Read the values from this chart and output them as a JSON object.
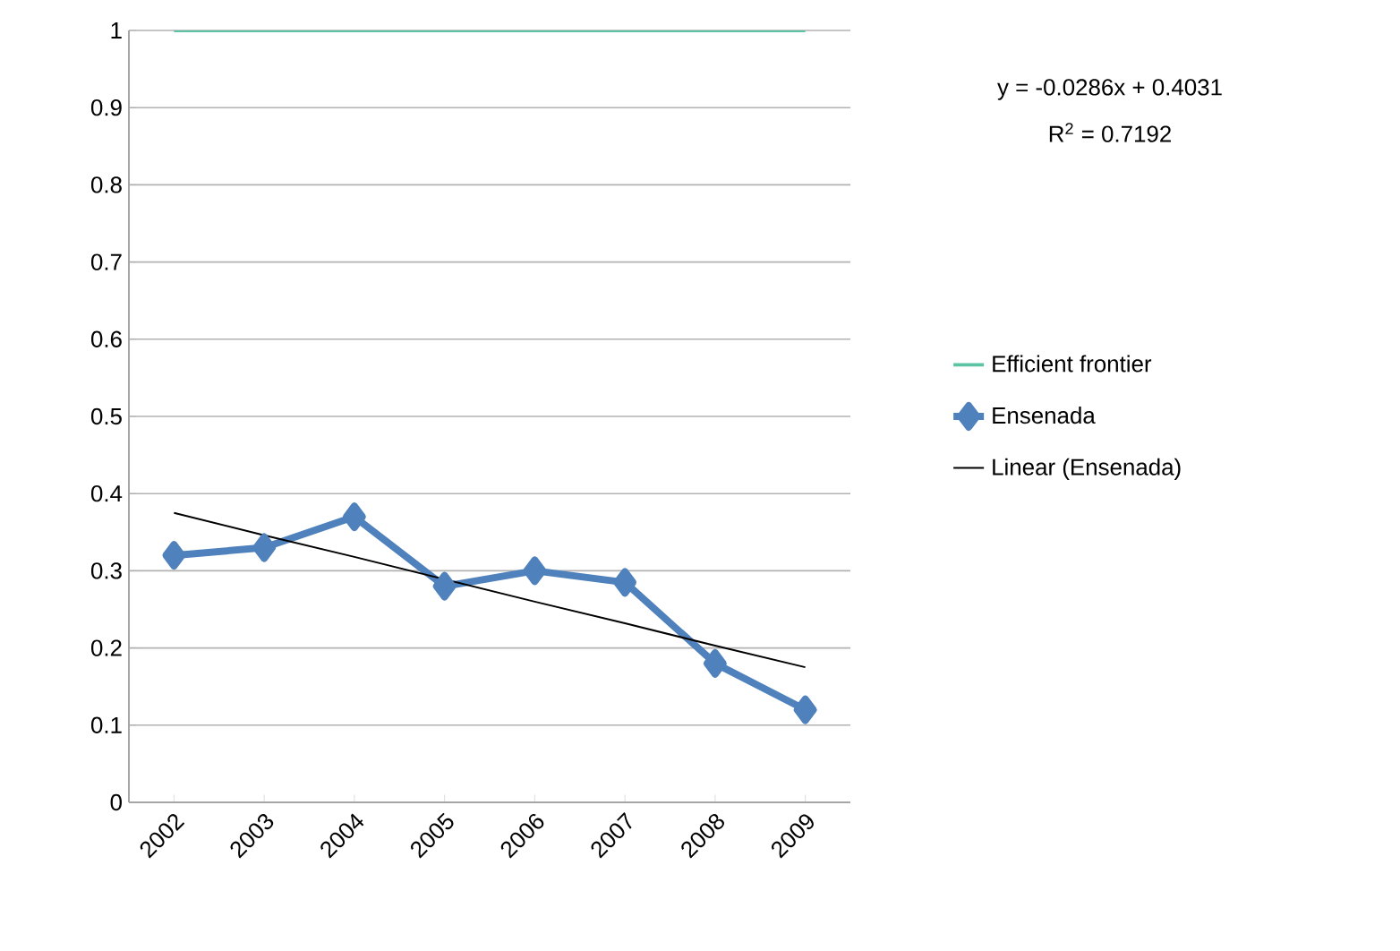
{
  "chart_data": {
    "type": "line",
    "categories": [
      "2002",
      "2003",
      "2004",
      "2005",
      "2006",
      "2007",
      "2008",
      "2009"
    ],
    "series": [
      {
        "name": "Efficient frontier",
        "color": "#5cc4a4",
        "values": [
          1,
          1,
          1,
          1,
          1,
          1,
          1,
          1
        ],
        "marker": "none"
      },
      {
        "name": "Ensenada",
        "color": "#4f81bd",
        "values": [
          0.32,
          0.33,
          0.37,
          0.28,
          0.3,
          0.285,
          0.18,
          0.12
        ],
        "marker": "diamond"
      },
      {
        "name": "Linear (Ensenada)",
        "color": "#000000",
        "values": [
          0.375,
          0.346,
          0.318,
          0.289,
          0.26,
          0.232,
          0.203,
          0.175
        ],
        "marker": "none"
      }
    ],
    "ylim": [
      0,
      1
    ],
    "yticks": [
      0,
      0.1,
      0.2,
      0.3,
      0.4,
      0.5,
      0.6,
      0.7,
      0.8,
      0.9,
      1
    ],
    "grid": "y",
    "legend": "right",
    "line_style": "solid",
    "annotations": [
      "y = -0.0286x + 0.4031",
      "R$^{2}$ = 0.7192"
    ]
  }
}
